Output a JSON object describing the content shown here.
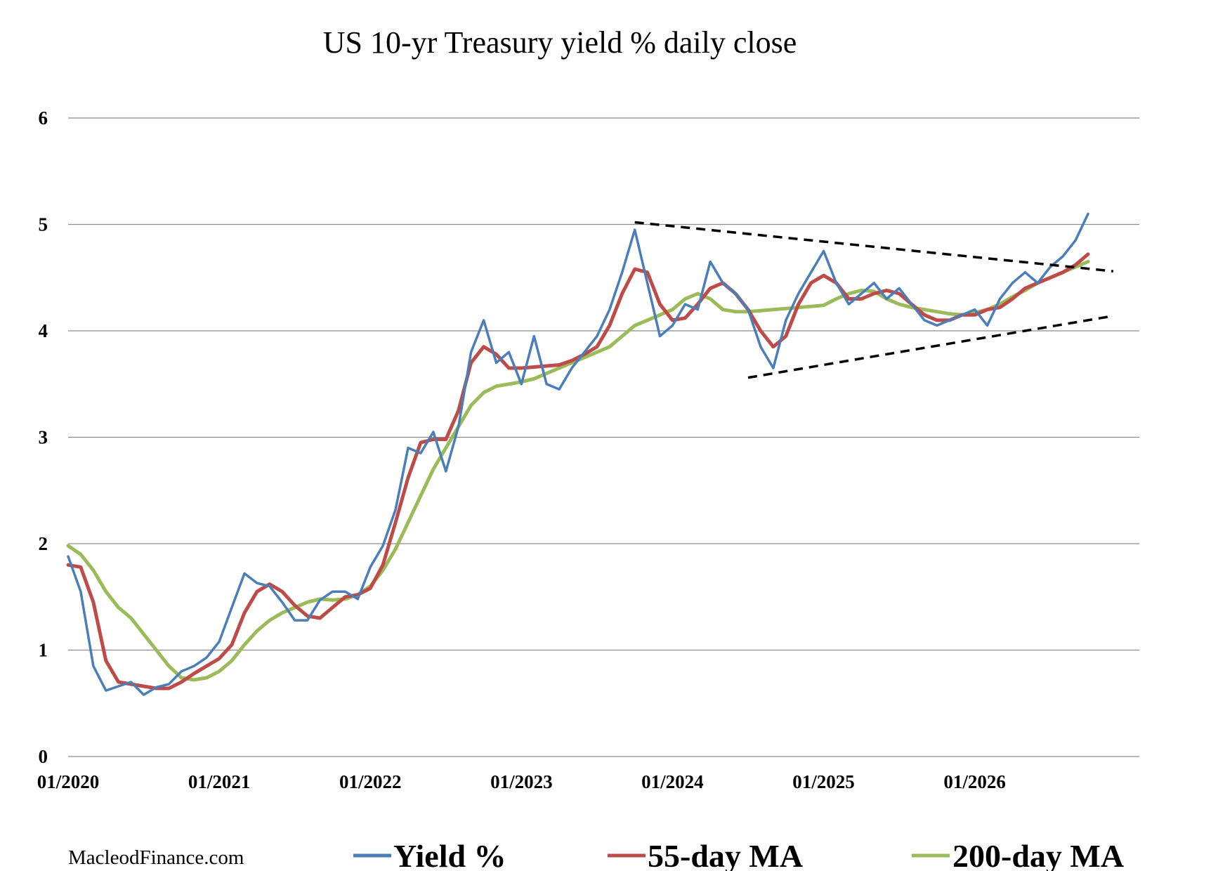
{
  "chart_data": {
    "type": "line",
    "title": "US 10-yr Treasury yield % daily close",
    "xlabel": "",
    "ylabel": "",
    "xlim": [
      "2020-01",
      "2026-10"
    ],
    "ylim": [
      0,
      6
    ],
    "y_ticks": [
      "0",
      "1",
      "2",
      "3",
      "4",
      "5",
      "6"
    ],
    "x_ticks": [
      {
        "date": "2020-01",
        "label": "01/2020"
      },
      {
        "date": "2021-01",
        "label": "01/2021"
      },
      {
        "date": "2022-01",
        "label": "01/2022"
      },
      {
        "date": "2023-01",
        "label": "01/2023"
      },
      {
        "date": "2024-01",
        "label": "01/2024"
      },
      {
        "date": "2025-01",
        "label": "01/2025"
      },
      {
        "date": "2026-01",
        "label": "01/2026"
      }
    ],
    "grid": "horizontal",
    "legend_position": "bottom",
    "series": [
      {
        "name": "Yield %",
        "color": "#4a7ebb",
        "x": [
          "2020-01",
          "2020-02",
          "2020-03",
          "2020-04",
          "2020-05",
          "2020-06",
          "2020-07",
          "2020-08",
          "2020-09",
          "2020-10",
          "2020-11",
          "2020-12",
          "2021-01",
          "2021-02",
          "2021-03",
          "2021-04",
          "2021-05",
          "2021-06",
          "2021-07",
          "2021-08",
          "2021-09",
          "2021-10",
          "2021-11",
          "2021-12",
          "2022-01",
          "2022-02",
          "2022-03",
          "2022-04",
          "2022-05",
          "2022-06",
          "2022-07",
          "2022-08",
          "2022-09",
          "2022-10",
          "2022-11",
          "2022-12",
          "2023-01",
          "2023-02",
          "2023-03",
          "2023-04",
          "2023-05",
          "2023-06",
          "2023-07",
          "2023-08",
          "2023-09",
          "2023-10",
          "2023-11",
          "2023-12",
          "2024-01",
          "2024-02",
          "2024-03",
          "2024-04",
          "2024-05",
          "2024-06",
          "2024-07",
          "2024-08",
          "2024-09",
          "2024-10",
          "2024-11",
          "2024-12",
          "2025-01",
          "2025-02",
          "2025-03",
          "2025-04",
          "2025-05",
          "2025-06",
          "2025-07",
          "2025-08",
          "2025-09",
          "2025-10",
          "2025-11",
          "2025-12",
          "2026-01",
          "2026-02",
          "2026-03",
          "2026-04",
          "2026-05",
          "2026-06",
          "2026-07",
          "2026-08",
          "2026-09",
          "2026-10"
        ],
        "values": [
          1.88,
          1.55,
          0.85,
          0.62,
          0.66,
          0.7,
          0.58,
          0.65,
          0.68,
          0.8,
          0.85,
          0.93,
          1.08,
          1.4,
          1.72,
          1.63,
          1.6,
          1.45,
          1.28,
          1.28,
          1.47,
          1.55,
          1.55,
          1.48,
          1.78,
          1.98,
          2.32,
          2.9,
          2.85,
          3.05,
          2.68,
          3.1,
          3.8,
          4.1,
          3.7,
          3.8,
          3.5,
          3.95,
          3.5,
          3.45,
          3.65,
          3.8,
          3.95,
          4.2,
          4.55,
          4.95,
          4.45,
          3.95,
          4.05,
          4.25,
          4.2,
          4.65,
          4.45,
          4.35,
          4.2,
          3.85,
          3.65,
          4.1,
          4.35,
          4.55,
          4.75,
          4.45,
          4.25,
          4.35,
          4.45,
          4.3,
          4.4,
          4.25,
          4.1,
          4.05,
          4.1,
          4.15,
          4.2,
          4.05,
          4.3,
          4.45,
          4.55,
          4.45,
          4.6,
          4.7,
          4.85,
          5.1
        ]
      },
      {
        "name": "55-day MA",
        "color": "#be4b48",
        "x": [
          "2020-01",
          "2020-02",
          "2020-03",
          "2020-04",
          "2020-05",
          "2020-06",
          "2020-07",
          "2020-08",
          "2020-09",
          "2020-10",
          "2020-11",
          "2020-12",
          "2021-01",
          "2021-02",
          "2021-03",
          "2021-04",
          "2021-05",
          "2021-06",
          "2021-07",
          "2021-08",
          "2021-09",
          "2021-10",
          "2021-11",
          "2021-12",
          "2022-01",
          "2022-02",
          "2022-03",
          "2022-04",
          "2022-05",
          "2022-06",
          "2022-07",
          "2022-08",
          "2022-09",
          "2022-10",
          "2022-11",
          "2022-12",
          "2023-01",
          "2023-02",
          "2023-03",
          "2023-04",
          "2023-05",
          "2023-06",
          "2023-07",
          "2023-08",
          "2023-09",
          "2023-10",
          "2023-11",
          "2023-12",
          "2024-01",
          "2024-02",
          "2024-03",
          "2024-04",
          "2024-05",
          "2024-06",
          "2024-07",
          "2024-08",
          "2024-09",
          "2024-10",
          "2024-11",
          "2024-12",
          "2025-01",
          "2025-02",
          "2025-03",
          "2025-04",
          "2025-05",
          "2025-06",
          "2025-07",
          "2025-08",
          "2025-09",
          "2025-10",
          "2025-11",
          "2025-12",
          "2026-01",
          "2026-02",
          "2026-03",
          "2026-04",
          "2026-05",
          "2026-06",
          "2026-07",
          "2026-08",
          "2026-09",
          "2026-10"
        ],
        "values": [
          1.8,
          1.78,
          1.45,
          0.9,
          0.7,
          0.68,
          0.66,
          0.64,
          0.64,
          0.7,
          0.78,
          0.85,
          0.92,
          1.05,
          1.35,
          1.55,
          1.62,
          1.55,
          1.42,
          1.32,
          1.3,
          1.4,
          1.5,
          1.52,
          1.58,
          1.8,
          2.2,
          2.62,
          2.95,
          2.98,
          2.98,
          3.25,
          3.7,
          3.85,
          3.78,
          3.65,
          3.65,
          3.66,
          3.67,
          3.68,
          3.72,
          3.78,
          3.85,
          4.05,
          4.35,
          4.58,
          4.55,
          4.25,
          4.1,
          4.12,
          4.25,
          4.4,
          4.45,
          4.35,
          4.2,
          4.0,
          3.85,
          3.95,
          4.25,
          4.45,
          4.52,
          4.45,
          4.3,
          4.3,
          4.35,
          4.38,
          4.35,
          4.25,
          4.15,
          4.1,
          4.1,
          4.15,
          4.15,
          4.2,
          4.22,
          4.3,
          4.4,
          4.45,
          4.5,
          4.55,
          4.62,
          4.72
        ]
      },
      {
        "name": "200-day MA",
        "color": "#9bbb59",
        "x": [
          "2020-01",
          "2020-02",
          "2020-03",
          "2020-04",
          "2020-05",
          "2020-06",
          "2020-07",
          "2020-08",
          "2020-09",
          "2020-10",
          "2020-11",
          "2020-12",
          "2021-01",
          "2021-02",
          "2021-03",
          "2021-04",
          "2021-05",
          "2021-06",
          "2021-07",
          "2021-08",
          "2021-09",
          "2021-10",
          "2021-11",
          "2021-12",
          "2022-01",
          "2022-02",
          "2022-03",
          "2022-04",
          "2022-05",
          "2022-06",
          "2022-07",
          "2022-08",
          "2022-09",
          "2022-10",
          "2022-11",
          "2022-12",
          "2023-01",
          "2023-02",
          "2023-03",
          "2023-04",
          "2023-05",
          "2023-06",
          "2023-07",
          "2023-08",
          "2023-09",
          "2023-10",
          "2023-11",
          "2023-12",
          "2024-01",
          "2024-02",
          "2024-03",
          "2024-04",
          "2024-05",
          "2024-06",
          "2024-07",
          "2024-08",
          "2024-09",
          "2024-10",
          "2024-11",
          "2024-12",
          "2025-01",
          "2025-02",
          "2025-03",
          "2025-04",
          "2025-05",
          "2025-06",
          "2025-07",
          "2025-08",
          "2025-09",
          "2025-10",
          "2025-11",
          "2025-12",
          "2026-01",
          "2026-02",
          "2026-03",
          "2026-04",
          "2026-05",
          "2026-06",
          "2026-07",
          "2026-08",
          "2026-09",
          "2026-10"
        ],
        "values": [
          1.98,
          1.9,
          1.75,
          1.55,
          1.4,
          1.3,
          1.15,
          1.0,
          0.85,
          0.74,
          0.72,
          0.74,
          0.8,
          0.9,
          1.05,
          1.18,
          1.28,
          1.35,
          1.4,
          1.45,
          1.48,
          1.47,
          1.48,
          1.52,
          1.6,
          1.75,
          1.95,
          2.2,
          2.45,
          2.7,
          2.9,
          3.1,
          3.3,
          3.42,
          3.48,
          3.5,
          3.52,
          3.55,
          3.6,
          3.65,
          3.7,
          3.75,
          3.8,
          3.85,
          3.95,
          4.05,
          4.1,
          4.15,
          4.2,
          4.3,
          4.35,
          4.3,
          4.2,
          4.18,
          4.18,
          4.19,
          4.2,
          4.21,
          4.22,
          4.23,
          4.24,
          4.3,
          4.35,
          4.38,
          4.37,
          4.3,
          4.25,
          4.22,
          4.2,
          4.18,
          4.16,
          4.15,
          4.17,
          4.2,
          4.25,
          4.32,
          4.38,
          4.45,
          4.5,
          4.55,
          4.6,
          4.65
        ]
      }
    ],
    "annotations": [
      {
        "type": "dashed-trendline",
        "color": "#000000",
        "from": {
          "date": "2023-10",
          "value": 5.02
        },
        "to": {
          "date": "2026-12",
          "value": 4.56
        }
      },
      {
        "type": "dashed-trendline",
        "color": "#000000",
        "from": {
          "date": "2024-07",
          "value": 3.56
        },
        "to": {
          "date": "2026-12",
          "value": 4.14
        }
      }
    ]
  },
  "source": "MacleodFinance.com"
}
